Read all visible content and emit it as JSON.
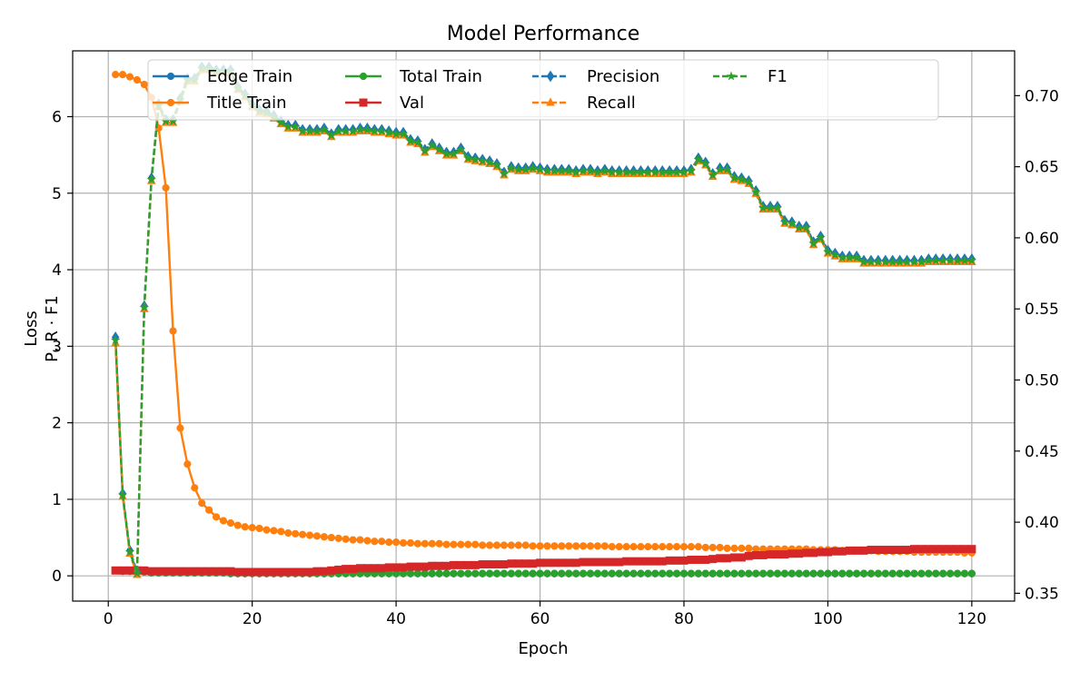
{
  "chart_data": {
    "type": "line",
    "title": "Model Performance",
    "xlabel": "Epoch",
    "ylabel_left": "Loss",
    "ylabel_right": "P, R · F1",
    "xlim": [
      -4.95,
      125.95
    ],
    "ylim_left": [
      -0.33,
      6.86
    ],
    "ylim_right": [
      0.3445,
      0.7315
    ],
    "xticks": [
      0,
      20,
      40,
      60,
      80,
      100,
      120
    ],
    "yticks_left": [
      0,
      1,
      2,
      3,
      4,
      5,
      6
    ],
    "yticks_right": [
      0.35,
      0.4,
      0.45,
      0.5,
      0.55,
      0.6,
      0.65,
      0.7
    ],
    "grid": true,
    "legend_position": "top",
    "x": [
      1,
      2,
      3,
      4,
      5,
      6,
      7,
      8,
      9,
      10,
      11,
      12,
      13,
      14,
      15,
      16,
      17,
      18,
      19,
      20,
      21,
      22,
      23,
      24,
      25,
      26,
      27,
      28,
      29,
      30,
      31,
      32,
      33,
      34,
      35,
      36,
      37,
      38,
      39,
      40,
      41,
      42,
      43,
      44,
      45,
      46,
      47,
      48,
      49,
      50,
      51,
      52,
      53,
      54,
      55,
      56,
      57,
      58,
      59,
      60,
      61,
      62,
      63,
      64,
      65,
      66,
      67,
      68,
      69,
      70,
      71,
      72,
      73,
      74,
      75,
      76,
      77,
      78,
      79,
      80,
      81,
      82,
      83,
      84,
      85,
      86,
      87,
      88,
      89,
      90,
      91,
      92,
      93,
      94,
      95,
      96,
      97,
      98,
      99,
      100,
      101,
      102,
      103,
      104,
      105,
      106,
      107,
      108,
      109,
      110,
      111,
      112,
      113,
      114,
      115,
      116,
      117,
      118,
      119,
      120
    ],
    "series": [
      {
        "name": "Edge Train",
        "axis": "left",
        "color": "#1f77b4",
        "dash": "solid",
        "marker": "circle",
        "values": [
          0.07,
          0.06,
          0.06,
          0.05,
          0.05,
          0.04,
          0.04,
          0.04,
          0.04,
          0.04,
          0.04,
          0.04,
          0.04,
          0.04,
          0.04,
          0.04,
          0.03,
          0.03,
          0.03,
          0.03,
          0.03,
          0.03,
          0.03,
          0.03,
          0.03,
          0.03,
          0.03,
          0.03,
          0.03,
          0.03,
          0.03,
          0.03,
          0.03,
          0.03,
          0.03,
          0.03,
          0.03,
          0.03,
          0.03,
          0.03,
          0.03,
          0.03,
          0.03,
          0.03,
          0.03,
          0.03,
          0.03,
          0.03,
          0.03,
          0.03,
          0.03,
          0.03,
          0.03,
          0.03,
          0.03,
          0.03,
          0.03,
          0.03,
          0.03,
          0.03,
          0.03,
          0.03,
          0.03,
          0.03,
          0.03,
          0.03,
          0.03,
          0.03,
          0.03,
          0.03,
          0.03,
          0.03,
          0.03,
          0.03,
          0.03,
          0.03,
          0.03,
          0.03,
          0.03,
          0.03,
          0.03,
          0.03,
          0.03,
          0.03,
          0.03,
          0.03,
          0.03,
          0.03,
          0.03,
          0.03,
          0.03,
          0.03,
          0.03,
          0.03,
          0.03,
          0.03,
          0.03,
          0.03,
          0.03,
          0.03,
          0.03,
          0.03,
          0.03,
          0.03,
          0.03,
          0.03,
          0.03,
          0.03,
          0.03,
          0.03,
          0.03,
          0.03,
          0.03,
          0.03,
          0.03,
          0.03,
          0.03,
          0.03,
          0.03,
          0.03
        ]
      },
      {
        "name": "Title Train",
        "axis": "left",
        "color": "#ff7f0e",
        "dash": "solid",
        "marker": "circle",
        "values": [
          6.55,
          6.55,
          6.52,
          6.48,
          6.42,
          6.25,
          5.85,
          5.07,
          3.2,
          1.93,
          1.46,
          1.15,
          0.95,
          0.86,
          0.77,
          0.72,
          0.69,
          0.66,
          0.64,
          0.63,
          0.62,
          0.6,
          0.59,
          0.58,
          0.56,
          0.55,
          0.54,
          0.53,
          0.52,
          0.51,
          0.5,
          0.49,
          0.48,
          0.47,
          0.47,
          0.46,
          0.45,
          0.45,
          0.44,
          0.44,
          0.43,
          0.43,
          0.42,
          0.42,
          0.42,
          0.42,
          0.41,
          0.41,
          0.41,
          0.41,
          0.41,
          0.4,
          0.4,
          0.4,
          0.4,
          0.4,
          0.4,
          0.4,
          0.39,
          0.39,
          0.39,
          0.39,
          0.39,
          0.39,
          0.39,
          0.39,
          0.39,
          0.39,
          0.39,
          0.38,
          0.38,
          0.38,
          0.38,
          0.38,
          0.38,
          0.38,
          0.38,
          0.38,
          0.38,
          0.38,
          0.38,
          0.38,
          0.37,
          0.37,
          0.37,
          0.36,
          0.36,
          0.36,
          0.36,
          0.35,
          0.35,
          0.35,
          0.35,
          0.35,
          0.35,
          0.35,
          0.35,
          0.34,
          0.34,
          0.34,
          0.34,
          0.33,
          0.33,
          0.33,
          0.33,
          0.33,
          0.32,
          0.32,
          0.32,
          0.32,
          0.32,
          0.31,
          0.31,
          0.31,
          0.31,
          0.31,
          0.31,
          0.31,
          0.3,
          0.3
        ]
      },
      {
        "name": "Total Train",
        "axis": "left",
        "color": "#2ca02c",
        "dash": "solid",
        "marker": "circle",
        "values": [
          0.07,
          0.06,
          0.06,
          0.05,
          0.05,
          0.04,
          0.04,
          0.04,
          0.04,
          0.04,
          0.04,
          0.04,
          0.04,
          0.04,
          0.04,
          0.04,
          0.03,
          0.03,
          0.03,
          0.03,
          0.03,
          0.03,
          0.03,
          0.03,
          0.03,
          0.03,
          0.03,
          0.03,
          0.03,
          0.03,
          0.03,
          0.03,
          0.03,
          0.03,
          0.03,
          0.03,
          0.03,
          0.03,
          0.03,
          0.03,
          0.03,
          0.03,
          0.03,
          0.03,
          0.03,
          0.03,
          0.03,
          0.03,
          0.03,
          0.03,
          0.03,
          0.03,
          0.03,
          0.03,
          0.03,
          0.03,
          0.03,
          0.03,
          0.03,
          0.03,
          0.03,
          0.03,
          0.03,
          0.03,
          0.03,
          0.03,
          0.03,
          0.03,
          0.03,
          0.03,
          0.03,
          0.03,
          0.03,
          0.03,
          0.03,
          0.03,
          0.03,
          0.03,
          0.03,
          0.03,
          0.03,
          0.03,
          0.03,
          0.03,
          0.03,
          0.03,
          0.03,
          0.03,
          0.03,
          0.03,
          0.03,
          0.03,
          0.03,
          0.03,
          0.03,
          0.03,
          0.03,
          0.03,
          0.03,
          0.03,
          0.03,
          0.03,
          0.03,
          0.03,
          0.03,
          0.03,
          0.03,
          0.03,
          0.03,
          0.03,
          0.03,
          0.03,
          0.03,
          0.03,
          0.03,
          0.03,
          0.03,
          0.03,
          0.03,
          0.03
        ]
      },
      {
        "name": "Val",
        "axis": "left",
        "color": "#d62728",
        "dash": "solid",
        "marker": "square",
        "values": [
          0.07,
          0.07,
          0.07,
          0.07,
          0.07,
          0.06,
          0.06,
          0.06,
          0.06,
          0.06,
          0.06,
          0.06,
          0.06,
          0.06,
          0.06,
          0.06,
          0.06,
          0.05,
          0.05,
          0.05,
          0.05,
          0.05,
          0.05,
          0.05,
          0.05,
          0.05,
          0.05,
          0.05,
          0.06,
          0.06,
          0.07,
          0.08,
          0.09,
          0.09,
          0.1,
          0.1,
          0.1,
          0.1,
          0.11,
          0.11,
          0.11,
          0.12,
          0.12,
          0.12,
          0.13,
          0.13,
          0.13,
          0.14,
          0.14,
          0.14,
          0.14,
          0.15,
          0.15,
          0.15,
          0.15,
          0.16,
          0.16,
          0.16,
          0.16,
          0.17,
          0.17,
          0.17,
          0.17,
          0.17,
          0.17,
          0.18,
          0.18,
          0.18,
          0.18,
          0.18,
          0.18,
          0.19,
          0.19,
          0.19,
          0.19,
          0.19,
          0.19,
          0.2,
          0.2,
          0.2,
          0.21,
          0.21,
          0.21,
          0.22,
          0.23,
          0.23,
          0.24,
          0.24,
          0.26,
          0.27,
          0.27,
          0.28,
          0.28,
          0.28,
          0.29,
          0.29,
          0.3,
          0.3,
          0.31,
          0.31,
          0.32,
          0.32,
          0.33,
          0.33,
          0.33,
          0.34,
          0.34,
          0.34,
          0.34,
          0.34,
          0.34,
          0.35,
          0.35,
          0.35,
          0.35,
          0.35,
          0.35,
          0.35,
          0.35,
          0.35
        ]
      },
      {
        "name": "Precision",
        "axis": "right",
        "color": "#1f77b4",
        "dash": "dashed",
        "marker": "diamond",
        "values": [
          0.53,
          0.42,
          0.38,
          0.365,
          0.552,
          0.642,
          0.694,
          0.683,
          0.683,
          0.698,
          0.712,
          0.712,
          0.72,
          0.72,
          0.718,
          0.718,
          0.718,
          0.706,
          0.701,
          0.694,
          0.69,
          0.689,
          0.686,
          0.682,
          0.679,
          0.679,
          0.676,
          0.676,
          0.676,
          0.677,
          0.673,
          0.676,
          0.676,
          0.676,
          0.677,
          0.677,
          0.676,
          0.676,
          0.675,
          0.674,
          0.674,
          0.669,
          0.668,
          0.662,
          0.666,
          0.663,
          0.66,
          0.66,
          0.663,
          0.657,
          0.656,
          0.655,
          0.654,
          0.652,
          0.646,
          0.65,
          0.649,
          0.649,
          0.65,
          0.649,
          0.648,
          0.648,
          0.648,
          0.648,
          0.647,
          0.648,
          0.648,
          0.647,
          0.648,
          0.647,
          0.647,
          0.647,
          0.647,
          0.647,
          0.647,
          0.647,
          0.647,
          0.647,
          0.647,
          0.647,
          0.648,
          0.656,
          0.653,
          0.645,
          0.649,
          0.649,
          0.643,
          0.642,
          0.64,
          0.633,
          0.622,
          0.622,
          0.622,
          0.612,
          0.611,
          0.608,
          0.608,
          0.597,
          0.601,
          0.591,
          0.589,
          0.587,
          0.587,
          0.587,
          0.584,
          0.584,
          0.584,
          0.584,
          0.584,
          0.584,
          0.584,
          0.584,
          0.584,
          0.585,
          0.585,
          0.585,
          0.585,
          0.585,
          0.585,
          0.585
        ]
      },
      {
        "name": "Recall",
        "axis": "right",
        "color": "#ff7f0e",
        "dash": "dashed",
        "marker": "triangle",
        "values": [
          0.526,
          0.418,
          0.378,
          0.363,
          0.55,
          0.64,
          0.692,
          0.681,
          0.681,
          0.696,
          0.71,
          0.71,
          0.718,
          0.718,
          0.716,
          0.716,
          0.716,
          0.704,
          0.699,
          0.692,
          0.688,
          0.687,
          0.684,
          0.68,
          0.677,
          0.677,
          0.674,
          0.674,
          0.674,
          0.675,
          0.671,
          0.674,
          0.674,
          0.674,
          0.675,
          0.675,
          0.674,
          0.674,
          0.673,
          0.672,
          0.672,
          0.667,
          0.666,
          0.66,
          0.664,
          0.661,
          0.658,
          0.658,
          0.661,
          0.655,
          0.654,
          0.653,
          0.652,
          0.65,
          0.644,
          0.648,
          0.647,
          0.647,
          0.648,
          0.647,
          0.646,
          0.646,
          0.646,
          0.646,
          0.645,
          0.646,
          0.646,
          0.645,
          0.646,
          0.645,
          0.645,
          0.645,
          0.645,
          0.645,
          0.645,
          0.645,
          0.645,
          0.645,
          0.645,
          0.645,
          0.646,
          0.654,
          0.651,
          0.643,
          0.647,
          0.647,
          0.641,
          0.64,
          0.638,
          0.631,
          0.62,
          0.62,
          0.62,
          0.61,
          0.609,
          0.606,
          0.606,
          0.595,
          0.599,
          0.589,
          0.587,
          0.585,
          0.585,
          0.585,
          0.582,
          0.582,
          0.582,
          0.582,
          0.582,
          0.582,
          0.582,
          0.582,
          0.582,
          0.583,
          0.583,
          0.583,
          0.583,
          0.583,
          0.583,
          0.583
        ]
      },
      {
        "name": "F1",
        "axis": "right",
        "color": "#2ca02c",
        "dash": "dashed",
        "marker": "star",
        "values": [
          0.528,
          0.419,
          0.379,
          0.364,
          0.551,
          0.641,
          0.693,
          0.682,
          0.682,
          0.697,
          0.711,
          0.711,
          0.719,
          0.719,
          0.717,
          0.717,
          0.717,
          0.705,
          0.7,
          0.693,
          0.689,
          0.688,
          0.685,
          0.681,
          0.678,
          0.678,
          0.675,
          0.675,
          0.675,
          0.676,
          0.672,
          0.675,
          0.675,
          0.675,
          0.676,
          0.676,
          0.675,
          0.675,
          0.674,
          0.673,
          0.673,
          0.668,
          0.667,
          0.661,
          0.665,
          0.662,
          0.659,
          0.659,
          0.662,
          0.656,
          0.655,
          0.654,
          0.653,
          0.651,
          0.645,
          0.649,
          0.648,
          0.648,
          0.649,
          0.648,
          0.647,
          0.647,
          0.647,
          0.647,
          0.646,
          0.647,
          0.647,
          0.646,
          0.647,
          0.646,
          0.646,
          0.646,
          0.646,
          0.646,
          0.646,
          0.646,
          0.646,
          0.646,
          0.646,
          0.646,
          0.647,
          0.655,
          0.652,
          0.644,
          0.648,
          0.648,
          0.642,
          0.641,
          0.639,
          0.632,
          0.621,
          0.621,
          0.621,
          0.611,
          0.61,
          0.607,
          0.607,
          0.596,
          0.6,
          0.59,
          0.588,
          0.586,
          0.586,
          0.586,
          0.583,
          0.583,
          0.583,
          0.583,
          0.583,
          0.583,
          0.583,
          0.583,
          0.583,
          0.584,
          0.584,
          0.584,
          0.584,
          0.584,
          0.584,
          0.584
        ]
      }
    ]
  }
}
